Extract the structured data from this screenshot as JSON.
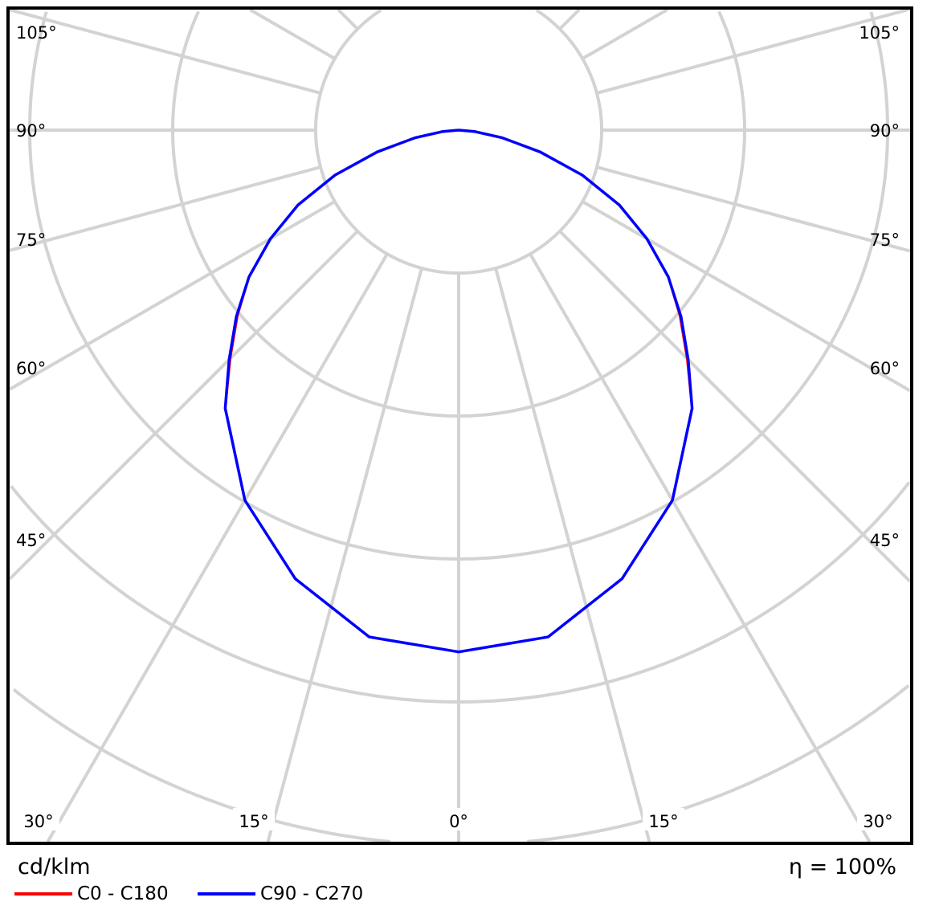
{
  "chart_data": {
    "type": "polar",
    "unit_label": "cd/klm",
    "efficiency_label": "η = 100%",
    "angle_labels": {
      "left": [
        "105°",
        "90°",
        "75°",
        "60°",
        "45°"
      ],
      "right": [
        "105°",
        "90°",
        "75°",
        "60°",
        "45°"
      ],
      "bottom": [
        "30°",
        "15°",
        "0°",
        "15°",
        "30°"
      ]
    },
    "grid": true,
    "angle_step_deg": 15,
    "ring_step": 100,
    "angles_deg": [
      0,
      10,
      20,
      30,
      40,
      45,
      50,
      55,
      60,
      65,
      70,
      75,
      80,
      85,
      90
    ],
    "series": [
      {
        "name": "C0 - C180",
        "color": "#ff0000",
        "values": [
          365,
          360,
          334,
          299,
          254,
          226,
          202,
          179,
          152,
          124,
          92,
          59,
          31,
          11,
          0
        ]
      },
      {
        "name": "C90 - C270",
        "color": "#0000ff",
        "values": [
          365,
          360,
          334,
          299,
          254,
          227,
          203,
          179,
          152,
          124,
          92,
          59,
          31,
          11,
          0
        ]
      }
    ],
    "legend_position": "bottom-left"
  }
}
